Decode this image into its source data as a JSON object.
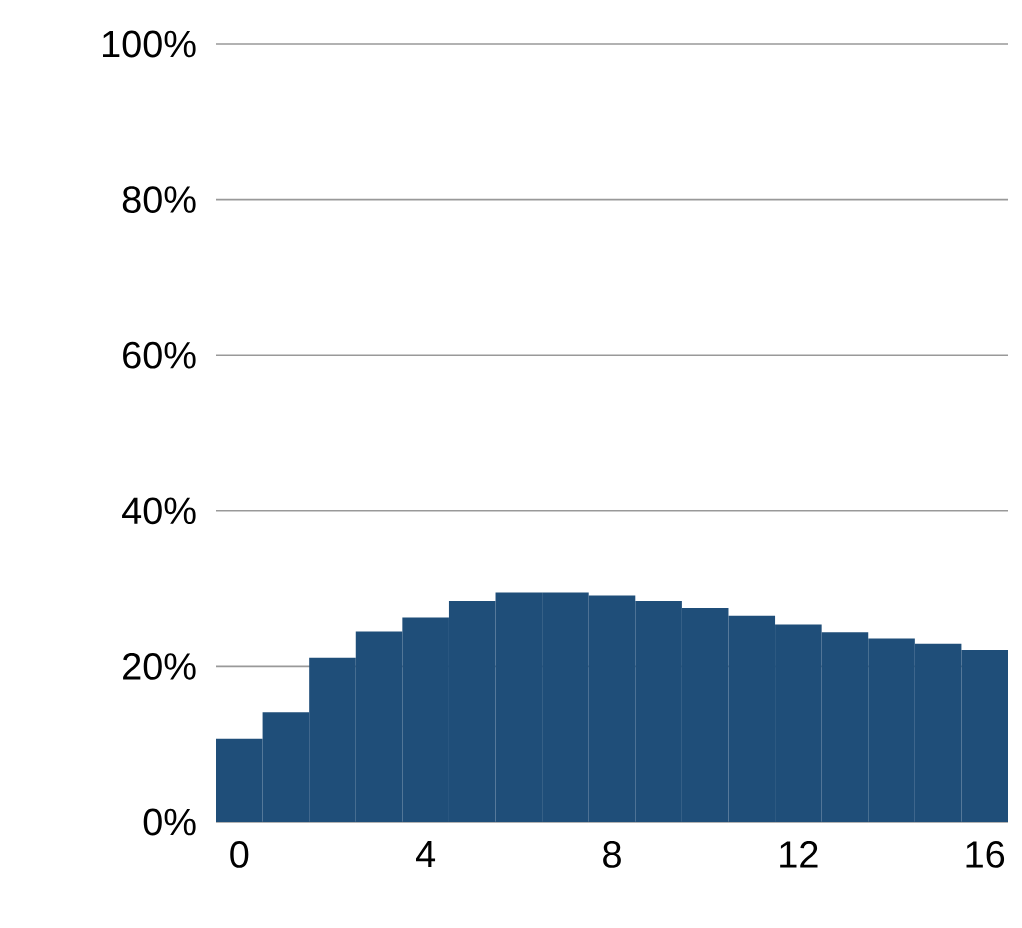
{
  "chart_data": {
    "type": "bar",
    "x": [
      0,
      1,
      2,
      3,
      4,
      5,
      6,
      7,
      8,
      9,
      10,
      11,
      12,
      13,
      14,
      15,
      16
    ],
    "values": [
      10.7,
      14.1,
      21.1,
      24.5,
      26.3,
      28.4,
      29.5,
      29.5,
      29.1,
      28.4,
      27.5,
      26.5,
      25.4,
      24.4,
      23.6,
      22.9,
      22.1
    ],
    "color": "#1f4e79",
    "xlim": [
      -0.5,
      16.5
    ],
    "xticks": [
      0,
      4,
      8,
      12,
      16
    ],
    "ylim": [
      0,
      100
    ],
    "yticks": [
      {
        "value": 0,
        "label": "0%"
      },
      {
        "value": 20,
        "label": "20%"
      },
      {
        "value": 40,
        "label": "40%"
      },
      {
        "value": 60,
        "label": "60%"
      },
      {
        "value": 80,
        "label": "80%"
      },
      {
        "value": 100,
        "label": "100%"
      }
    ],
    "grid": "y"
  }
}
